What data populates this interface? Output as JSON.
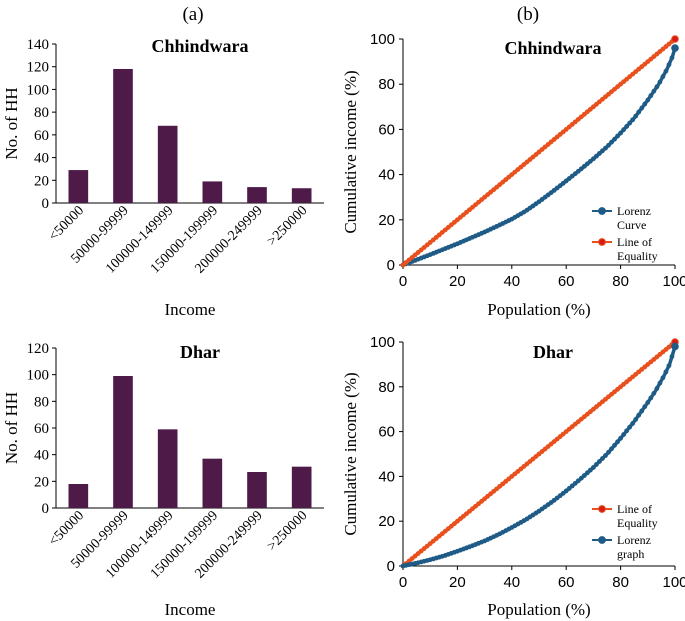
{
  "panel_labels": {
    "a": "(a)",
    "b": "(b)"
  },
  "colors": {
    "bar": "#4e1a48",
    "lorenz": "#1e5b86",
    "equality": "#e8501e",
    "equality_dot": "#d61c14",
    "axis": "#000000"
  },
  "chart_data": [
    {
      "id": "bar-chhindwara",
      "type": "bar",
      "title": "Chhindwara",
      "xlabel": "Income",
      "ylabel": "No. of HH",
      "categories": [
        "<50000",
        "50000-99999",
        "100000-149999",
        "150000-199999",
        "200000-249999",
        ">250000"
      ],
      "values": [
        29,
        118,
        68,
        19,
        14,
        13
      ],
      "ylim": [
        0,
        140
      ],
      "yticks": [
        0,
        20,
        40,
        60,
        80,
        100,
        120,
        140
      ],
      "grid": false
    },
    {
      "id": "lorenz-chhindwara",
      "type": "line",
      "title": "Chhindwara",
      "xlabel": "Population  (%)",
      "ylabel": "Cumulative  income  (%)",
      "xlim": [
        0,
        100
      ],
      "ylim": [
        0,
        100
      ],
      "xticks": [
        0,
        20,
        40,
        60,
        80,
        100
      ],
      "yticks": [
        0,
        20,
        40,
        60,
        80,
        100
      ],
      "legend_position": "bottom-right",
      "series": [
        {
          "name": "Lorenz Curve",
          "legend_lines": [
            "Lorenz",
            "Curve"
          ],
          "color_key": "lorenz",
          "x": [
            0,
            5,
            10,
            15,
            20,
            25,
            30,
            35,
            40,
            45,
            50,
            55,
            60,
            65,
            70,
            75,
            80,
            85,
            90,
            94,
            97,
            99,
            100
          ],
          "y": [
            0,
            2.3,
            4.6,
            7,
            9.4,
            12,
            14.6,
            17.4,
            20.3,
            23.8,
            28,
            32.5,
            37.2,
            42,
            47,
            52.3,
            58.4,
            65,
            73,
            80,
            86.5,
            92,
            96
          ]
        },
        {
          "name": "Line of Equality",
          "legend_lines": [
            "Line of",
            "Equality"
          ],
          "color_key": "equality",
          "x": [
            0,
            100
          ],
          "y": [
            0,
            100
          ]
        }
      ]
    },
    {
      "id": "bar-dhar",
      "type": "bar",
      "title": "Dhar",
      "xlabel": "Income",
      "ylabel": "No. of HH",
      "categories": [
        "<50000",
        "50000-99999",
        "100000-149999",
        "150000-199999",
        "200000-249999",
        ">250000"
      ],
      "values": [
        18,
        99,
        59,
        37,
        27,
        31
      ],
      "ylim": [
        0,
        120
      ],
      "yticks": [
        0,
        20,
        40,
        60,
        80,
        100,
        120
      ],
      "grid": false
    },
    {
      "id": "lorenz-dhar",
      "type": "line",
      "title": "Dhar",
      "xlabel": "Population  (%)",
      "ylabel": "Cumulative  income  (%)",
      "xlim": [
        0,
        100
      ],
      "ylim": [
        0,
        100
      ],
      "xticks": [
        0,
        20,
        40,
        60,
        80,
        100
      ],
      "yticks": [
        0,
        20,
        40,
        60,
        80,
        100
      ],
      "legend_position": "bottom-right",
      "series": [
        {
          "name": "Line of Equality",
          "legend_lines": [
            "Line of",
            "Equality"
          ],
          "color_key": "equality",
          "x": [
            0,
            100
          ],
          "y": [
            0,
            100
          ]
        },
        {
          "name": "Lorenz graph",
          "legend_lines": [
            "Lorenz",
            "graph"
          ],
          "color_key": "lorenz",
          "x": [
            0,
            5,
            10,
            15,
            20,
            25,
            30,
            35,
            40,
            45,
            50,
            55,
            60,
            65,
            70,
            75,
            80,
            85,
            90,
            93,
            96,
            98,
            99,
            100
          ],
          "y": [
            0,
            1.3,
            2.8,
            4.5,
            6.6,
            8.8,
            11.2,
            14,
            17.2,
            20.6,
            24.5,
            28.8,
            33.5,
            38.6,
            44,
            50,
            57,
            64.5,
            73,
            78.5,
            85,
            90,
            94,
            98
          ]
        }
      ]
    }
  ]
}
